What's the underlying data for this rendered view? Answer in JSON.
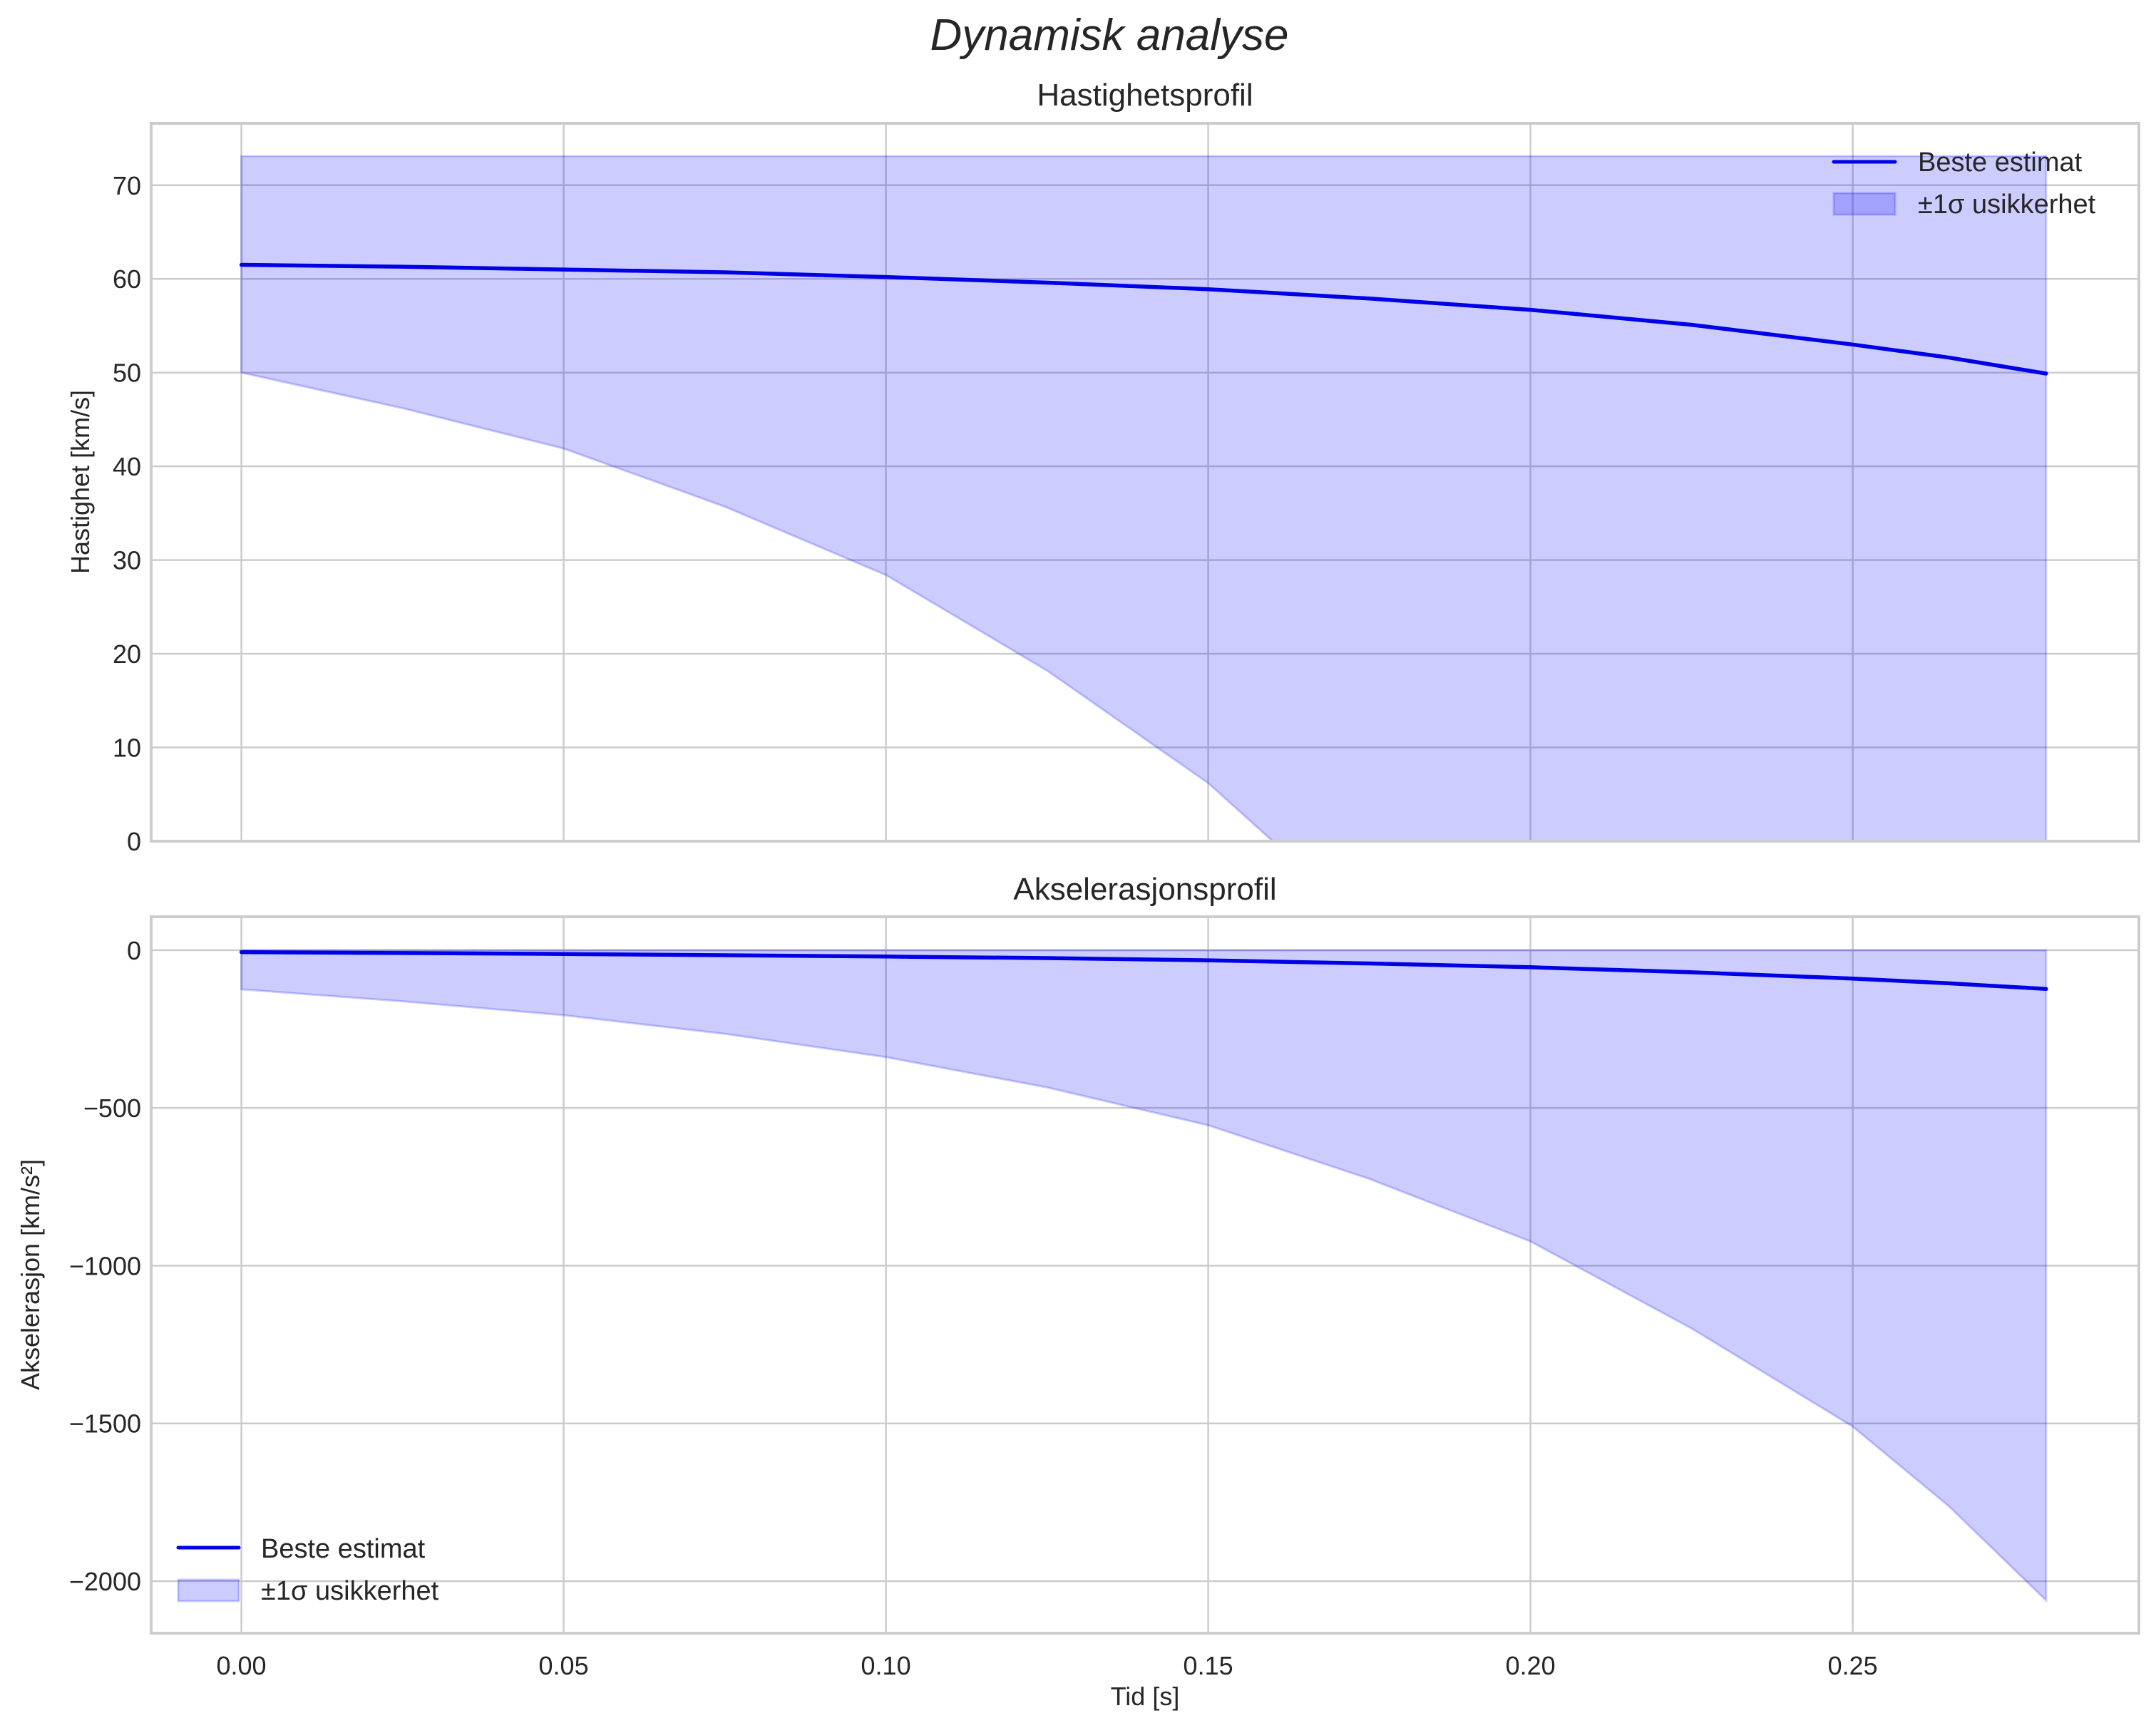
{
  "figure": {
    "suptitle": "Dynamisk analyse",
    "xlabel": "Tid [s]"
  },
  "colors": {
    "line": "#0000e6",
    "band": "#0000ff",
    "band_alpha": 0.2,
    "grid": "#cccccc",
    "text": "#262626"
  },
  "chart_data": [
    {
      "type": "line",
      "title": "Hastighetsprofil",
      "xlabel": "",
      "ylabel": "Hastighet [km/s]",
      "xlim": [
        -0.014,
        0.2944
      ],
      "ylim": [
        0,
        76.6
      ],
      "grid": true,
      "legend_position": "upper right",
      "xticks": [
        0.0,
        0.05,
        0.1,
        0.15,
        0.2,
        0.25
      ],
      "xtick_labels": [
        "0.00",
        "0.05",
        "0.10",
        "0.15",
        "0.20",
        "0.25"
      ],
      "yticks": [
        0,
        10,
        20,
        30,
        40,
        50,
        60,
        70
      ],
      "ytick_labels": [
        "0",
        "10",
        "20",
        "30",
        "40",
        "50",
        "60",
        "70"
      ],
      "show_xtick_labels": false,
      "x": [
        0.0,
        0.025,
        0.05,
        0.075,
        0.1,
        0.125,
        0.15,
        0.16,
        0.175,
        0.2,
        0.225,
        0.25,
        0.265,
        0.28
      ],
      "series": [
        {
          "name": "Beste estimat",
          "kind": "line",
          "values": [
            61.5,
            61.3,
            61.0,
            60.7,
            60.2,
            59.6,
            58.9,
            58.5,
            57.9,
            56.7,
            55.1,
            53.0,
            51.6,
            49.9
          ]
        },
        {
          "name": "±1σ usikkerhet",
          "kind": "band",
          "upper": [
            73.1,
            73.1,
            73.1,
            73.1,
            73.1,
            73.1,
            73.1,
            73.1,
            73.1,
            73.1,
            73.1,
            73.1,
            73.1,
            73.1
          ],
          "lower": [
            50.0,
            46.2,
            41.9,
            35.7,
            28.4,
            18.2,
            6.2,
            0.0,
            0.0,
            0.0,
            0.0,
            0.0,
            0.0,
            0.0
          ]
        }
      ]
    },
    {
      "type": "line",
      "title": "Akselerasjonsprofil",
      "xlabel": "Tid [s]",
      "ylabel": "Akselerasjon [km/s²]",
      "xlim": [
        -0.014,
        0.2944
      ],
      "ylim": [
        -2165,
        106
      ],
      "grid": true,
      "legend_position": "lower left",
      "xticks": [
        0.0,
        0.05,
        0.1,
        0.15,
        0.2,
        0.25
      ],
      "xtick_labels": [
        "0.00",
        "0.05",
        "0.10",
        "0.15",
        "0.20",
        "0.25"
      ],
      "yticks": [
        0,
        -500,
        -1000,
        -1500,
        -2000
      ],
      "ytick_labels": [
        "0",
        "−500",
        "−1000",
        "−1500",
        "−2000"
      ],
      "show_xtick_labels": true,
      "x": [
        0.0,
        0.025,
        0.05,
        0.075,
        0.1,
        0.125,
        0.15,
        0.175,
        0.2,
        0.225,
        0.25,
        0.265,
        0.28
      ],
      "series": [
        {
          "name": "Beste estimat",
          "kind": "line",
          "values": [
            -6,
            -9,
            -12,
            -16,
            -20,
            -25,
            -32,
            -42,
            -54,
            -70,
            -90,
            -105,
            -123
          ]
        },
        {
          "name": "±1σ usikkerhet",
          "kind": "band",
          "upper": [
            0,
            0,
            0,
            0,
            0,
            0,
            0,
            0,
            0,
            0,
            0,
            0,
            0
          ],
          "lower": [
            -124,
            -162,
            -206,
            -265,
            -339,
            -435,
            -555,
            -725,
            -923,
            -1199,
            -1510,
            -1764,
            -2061
          ]
        }
      ]
    }
  ]
}
